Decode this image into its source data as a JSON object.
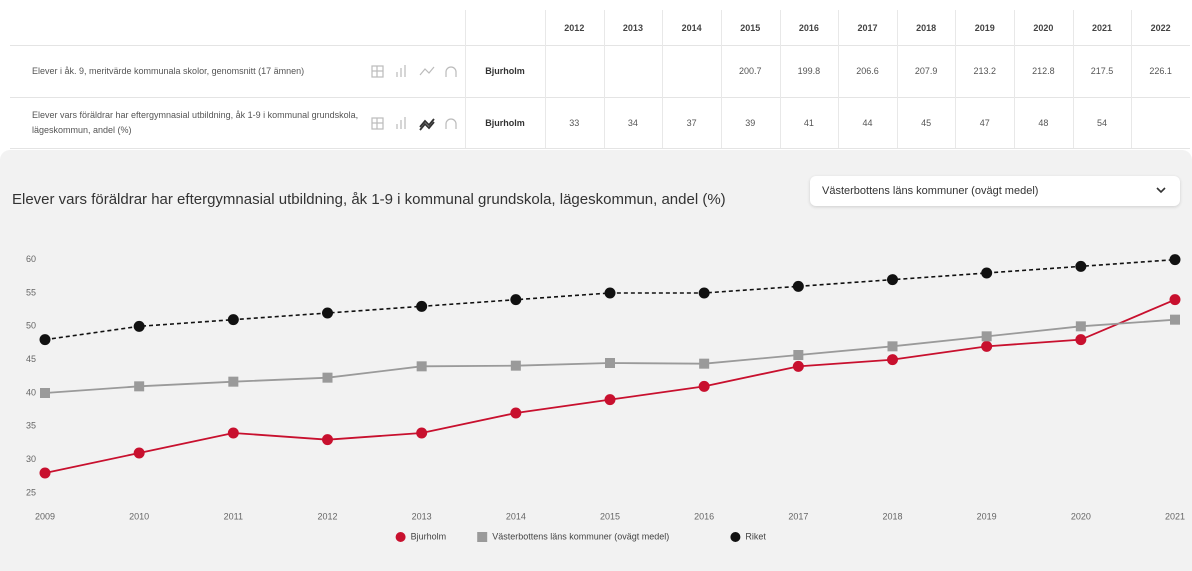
{
  "table": {
    "years": [
      2012,
      2013,
      2014,
      2015,
      2016,
      2017,
      2018,
      2019,
      2020,
      2021,
      2022
    ],
    "rows": [
      {
        "label": "Elever i åk. 9, meritvärde kommunala skolor, genomsnitt (17 ämnen)",
        "municipality": "Bjurholm",
        "values": [
          null,
          null,
          null,
          200.7,
          199.8,
          206.6,
          207.9,
          213.2,
          212.8,
          217.5,
          226.1
        ]
      },
      {
        "label": "Elever vars föräldrar har eftergymnasial utbildning, åk 1-9 i kommunal grundskola, lägeskommun, andel (%)",
        "municipality": "Bjurholm",
        "values": [
          33,
          34,
          37,
          39,
          41,
          44,
          45,
          47,
          48,
          54,
          null
        ]
      }
    ]
  },
  "dropdown": "Västerbottens läns kommuner (ovägt medel)",
  "chart_data": {
    "type": "line",
    "title": "Elever vars föräldrar har eftergymnasial utbildning, åk 1-9 i kommunal grundskola, lägeskommun, andel (%)",
    "x": [
      2009,
      2010,
      2011,
      2012,
      2013,
      2014,
      2015,
      2016,
      2017,
      2018,
      2019,
      2020,
      2021
    ],
    "xlim": [
      2009,
      2021
    ],
    "xticks": [
      2009,
      2010,
      2011,
      2012,
      2013,
      2014,
      2015,
      2016,
      2017,
      2018,
      2019,
      2020,
      2021
    ],
    "ylim": [
      22,
      61
    ],
    "yticks": [
      25,
      30,
      35,
      40,
      45,
      50,
      55,
      60
    ],
    "grid": false,
    "legend": "bottom",
    "series": [
      {
        "name": "Bjurholm",
        "color": "#c8102e",
        "marker": "circle",
        "line_style": "solid",
        "values": [
          28,
          31,
          34,
          33,
          34,
          37,
          39,
          41,
          44,
          45,
          47,
          48,
          54
        ]
      },
      {
        "name": "Västerbottens läns kommuner (ovägt medel)",
        "color": "#9a9a9a",
        "marker": "square",
        "line_style": "solid",
        "values": [
          40,
          41,
          41.7,
          42.3,
          44,
          44.1,
          44.5,
          44.4,
          45.7,
          47,
          48.5,
          50,
          51
        ]
      },
      {
        "name": "Riket",
        "color": "#111111",
        "marker": "circle",
        "line_style": "dashed",
        "values": [
          48,
          50,
          51,
          52,
          53,
          54,
          55,
          55,
          56,
          57,
          58,
          59,
          60
        ]
      }
    ]
  }
}
